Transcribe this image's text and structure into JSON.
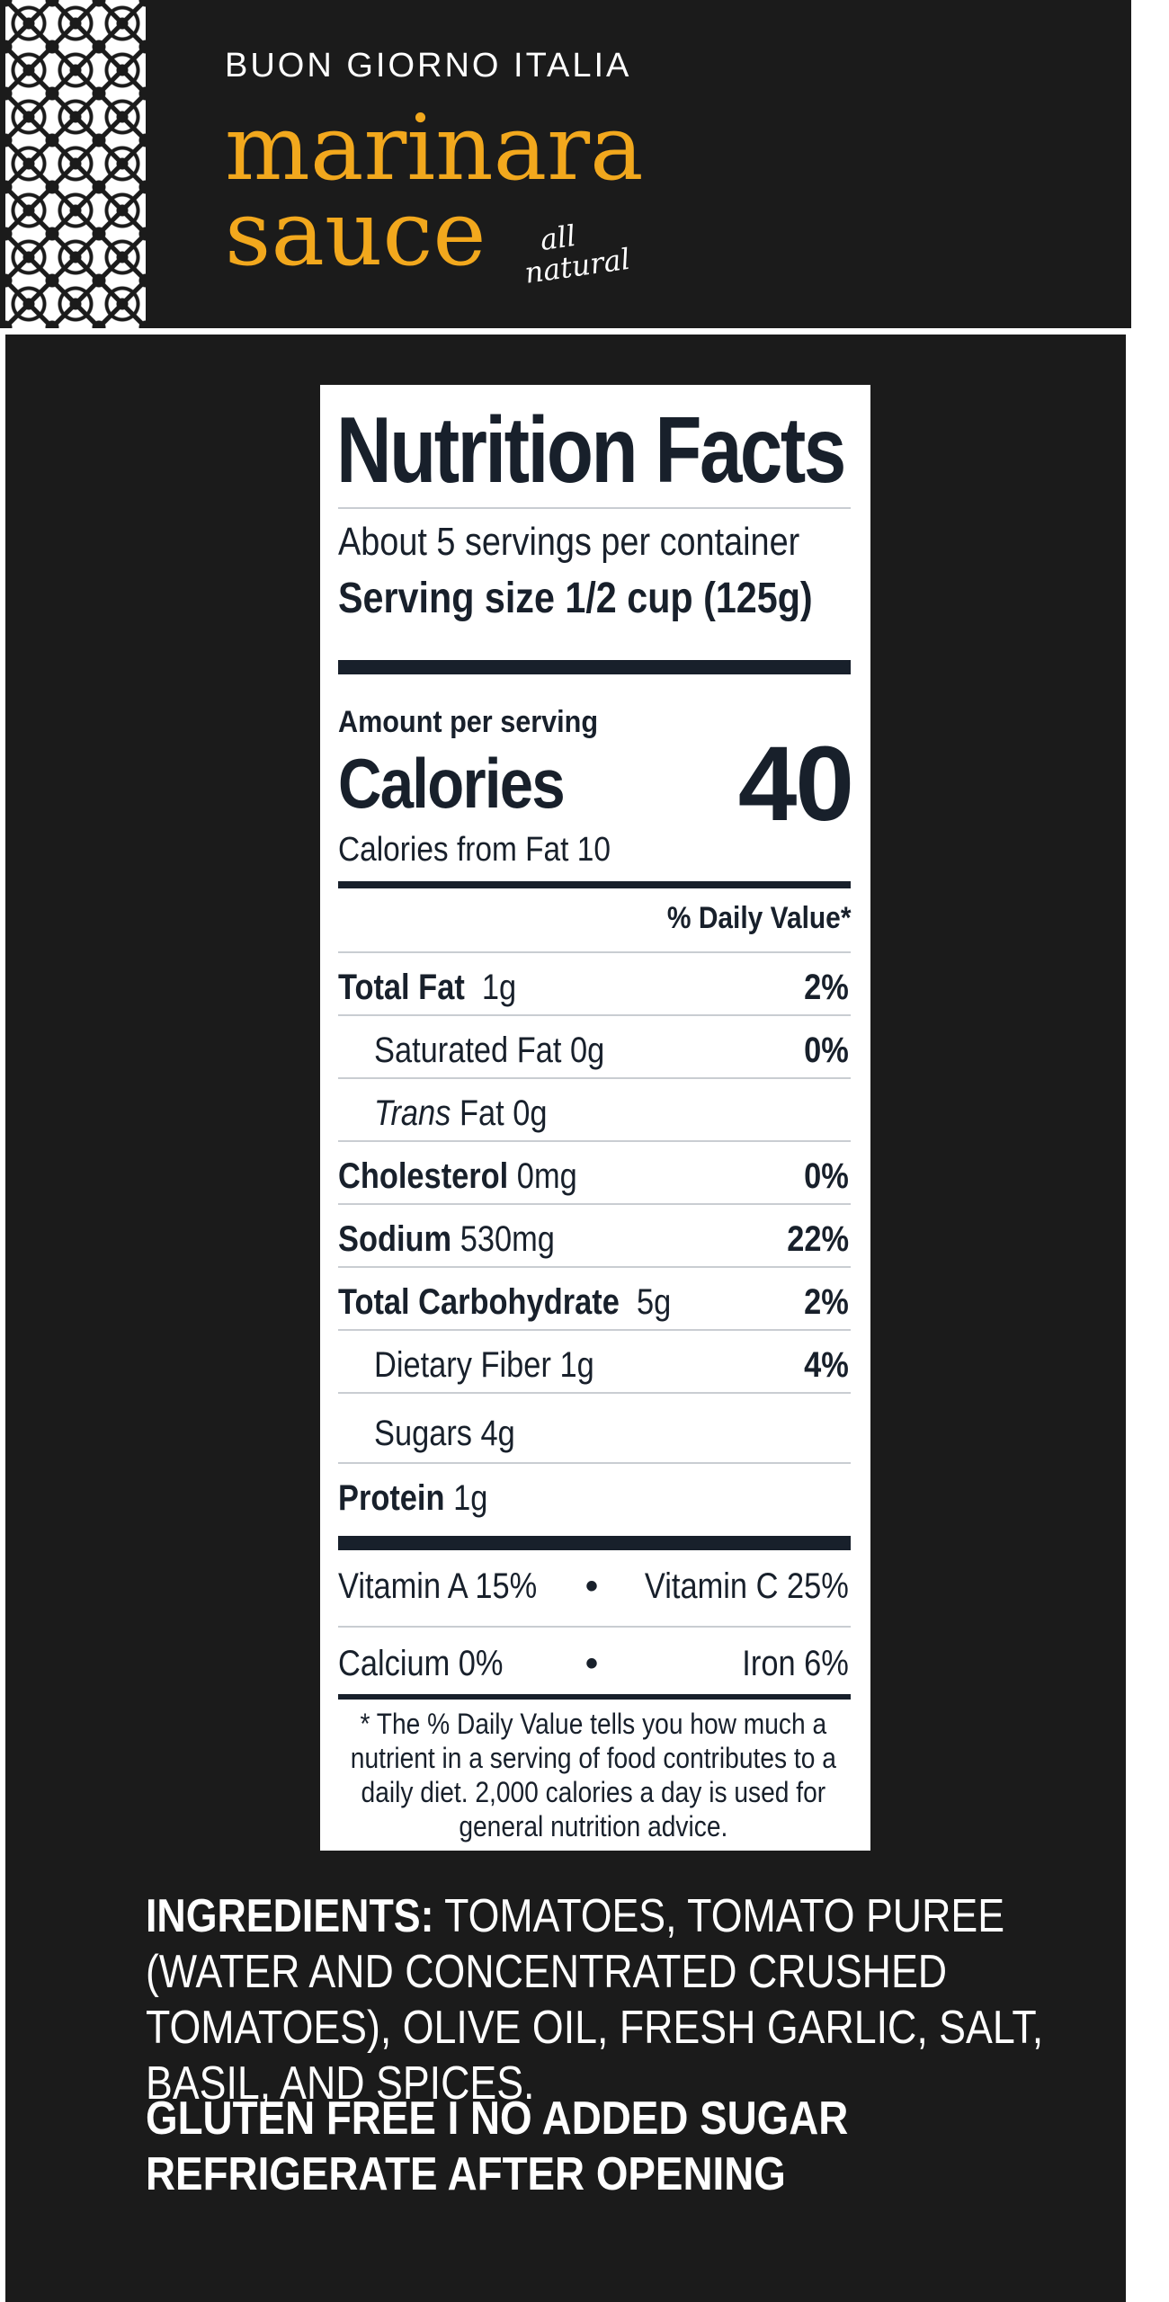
{
  "header": {
    "brand": "BUON GIORNO ITALIA",
    "product_line1": "marinara",
    "product_line2": "sauce",
    "tagline_line1": "all",
    "tagline_line2": "natural"
  },
  "nutrition": {
    "title": "Nutrition Facts",
    "servings_per_container": "About 5 servings per container",
    "serving_size": "Serving size  1/2 cup (125g)",
    "amount_per_serving": "Amount per serving",
    "calories_label": "Calories",
    "calories_value": "40",
    "calories_from_fat": "Calories from Fat 10",
    "daily_value_header": "% Daily Value*",
    "rows": [
      {
        "label": "Total Fat",
        "amount": "1g",
        "dv": "2%"
      },
      {
        "label": "Saturated Fat 0g",
        "amount": "",
        "dv": "0%"
      },
      {
        "label_italic": "Trans",
        "label": "Fat 0g",
        "amount": "",
        "dv": ""
      },
      {
        "label": "Cholesterol",
        "amount": "0mg",
        "dv": "0%"
      },
      {
        "label": "Sodium",
        "amount": "530mg",
        "dv": "22%"
      },
      {
        "label": "Total Carbohydrate",
        "amount": "5g",
        "dv": "2%"
      },
      {
        "label": "Dietary Fiber 1g",
        "amount": "",
        "dv": "4%"
      },
      {
        "label": "Sugars 4g",
        "amount": "",
        "dv": ""
      },
      {
        "label": "Protein",
        "amount": "1g",
        "dv": ""
      }
    ],
    "vitamins": [
      {
        "left": "Vitamin A 15%",
        "right": "Vitamin C 25%"
      },
      {
        "left": "Calcium 0%",
        "right": "Iron 6%"
      }
    ],
    "bullet": "•",
    "footnote": "* The % Daily Value tells you how much a nutrient in a serving of food contributes to a daily diet. 2,000 calories a day is used for general nutrition advice."
  },
  "ingredients": {
    "label": "INGREDIENTS:",
    "text": "TOMATOES, TOMATO PUREE (WATER AND CONCENTRATED CRUSHED TOMATOES), OLIVE OIL, FRESH GARLIC, SALT, BASIL, AND SPICES."
  },
  "claims": {
    "line1": "GLUTEN FREE I NO ADDED SUGAR",
    "line2": "REFRIGERATE AFTER OPENING"
  },
  "colors": {
    "background": "#1b1b1b",
    "accent": "#f2a81d",
    "label_ink": "#18202b"
  }
}
